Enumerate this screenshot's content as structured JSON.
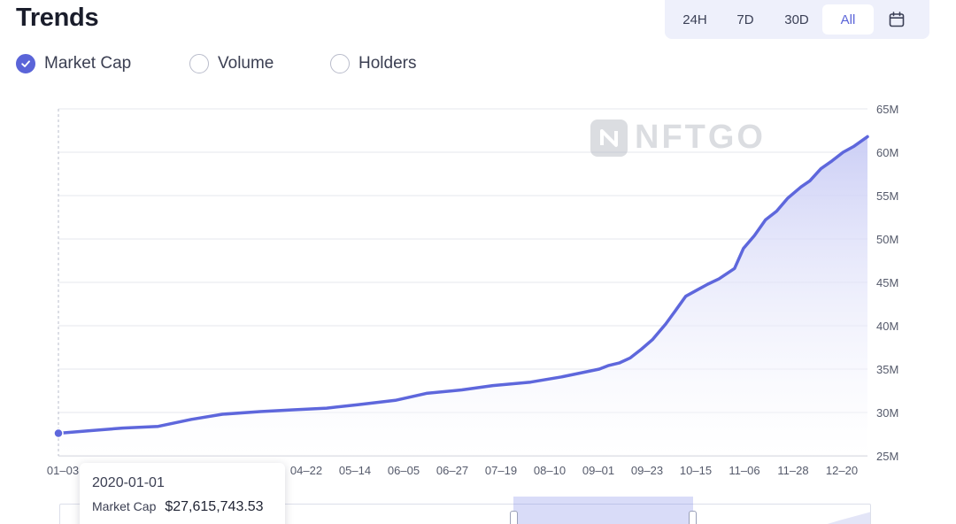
{
  "header": {
    "title": "Trends"
  },
  "time_range": {
    "options": [
      "24H",
      "7D",
      "30D",
      "All"
    ],
    "selected": "All",
    "calendar_icon": "calendar-icon"
  },
  "metric_toggles": [
    {
      "label": "Market Cap",
      "checked": true
    },
    {
      "label": "Volume",
      "checked": false
    },
    {
      "label": "Holders",
      "checked": false
    }
  ],
  "watermark": {
    "text": "NFTGO",
    "logo_icon": "nftgo-logo-icon"
  },
  "colors": {
    "accent": "#5a64d8",
    "line": "#5e67dc",
    "area_top": "#c9ccf5",
    "area_bottom": "#ffffff",
    "grid": "#e6e7ee"
  },
  "tooltip": {
    "date": "2020-01-01",
    "label": "Market Cap",
    "value": "$27,615,743.53"
  },
  "chart_data": {
    "type": "area",
    "title": "",
    "xlabel": "",
    "ylabel": "",
    "y_axis_position": "right",
    "grid": true,
    "ylim": [
      25,
      65
    ],
    "y_ticks": [
      "25M",
      "30M",
      "35M",
      "40M",
      "45M",
      "50M",
      "55M",
      "60M",
      "65M"
    ],
    "x_tick_labels": [
      "01–03",
      "04–22",
      "05–14",
      "06–05",
      "06–27",
      "07–19",
      "08–10",
      "09–01",
      "09–23",
      "10–15",
      "11–06",
      "11–28",
      "12–20"
    ],
    "unit": "M",
    "series": [
      {
        "name": "Market Cap",
        "x": [
          "01-01",
          "01-15",
          "01-30",
          "02-15",
          "03-01",
          "03-15",
          "04-01",
          "04-15",
          "05-01",
          "05-15",
          "06-01",
          "06-15",
          "07-01",
          "07-15",
          "08-01",
          "08-15",
          "09-01",
          "09-05",
          "09-10",
          "09-15",
          "09-20",
          "09-25",
          "10-01",
          "10-05",
          "10-10",
          "10-15",
          "10-20",
          "10-25",
          "11-01",
          "11-05",
          "11-10",
          "11-15",
          "11-20",
          "11-25",
          "12-01",
          "12-05",
          "12-10",
          "12-15",
          "12-20",
          "12-25",
          "12-31"
        ],
        "values": [
          27.6,
          27.9,
          28.2,
          28.4,
          29.2,
          29.8,
          30.1,
          30.3,
          30.5,
          30.9,
          31.4,
          32.2,
          32.6,
          33.1,
          33.5,
          34.1,
          35.0,
          35.4,
          35.7,
          36.3,
          37.3,
          38.4,
          40.2,
          41.6,
          43.4,
          44.1,
          44.8,
          45.4,
          46.6,
          48.9,
          50.4,
          52.2,
          53.2,
          54.7,
          56.0,
          56.7,
          58.1,
          59.0,
          60.0,
          60.7,
          61.8
        ]
      }
    ]
  }
}
